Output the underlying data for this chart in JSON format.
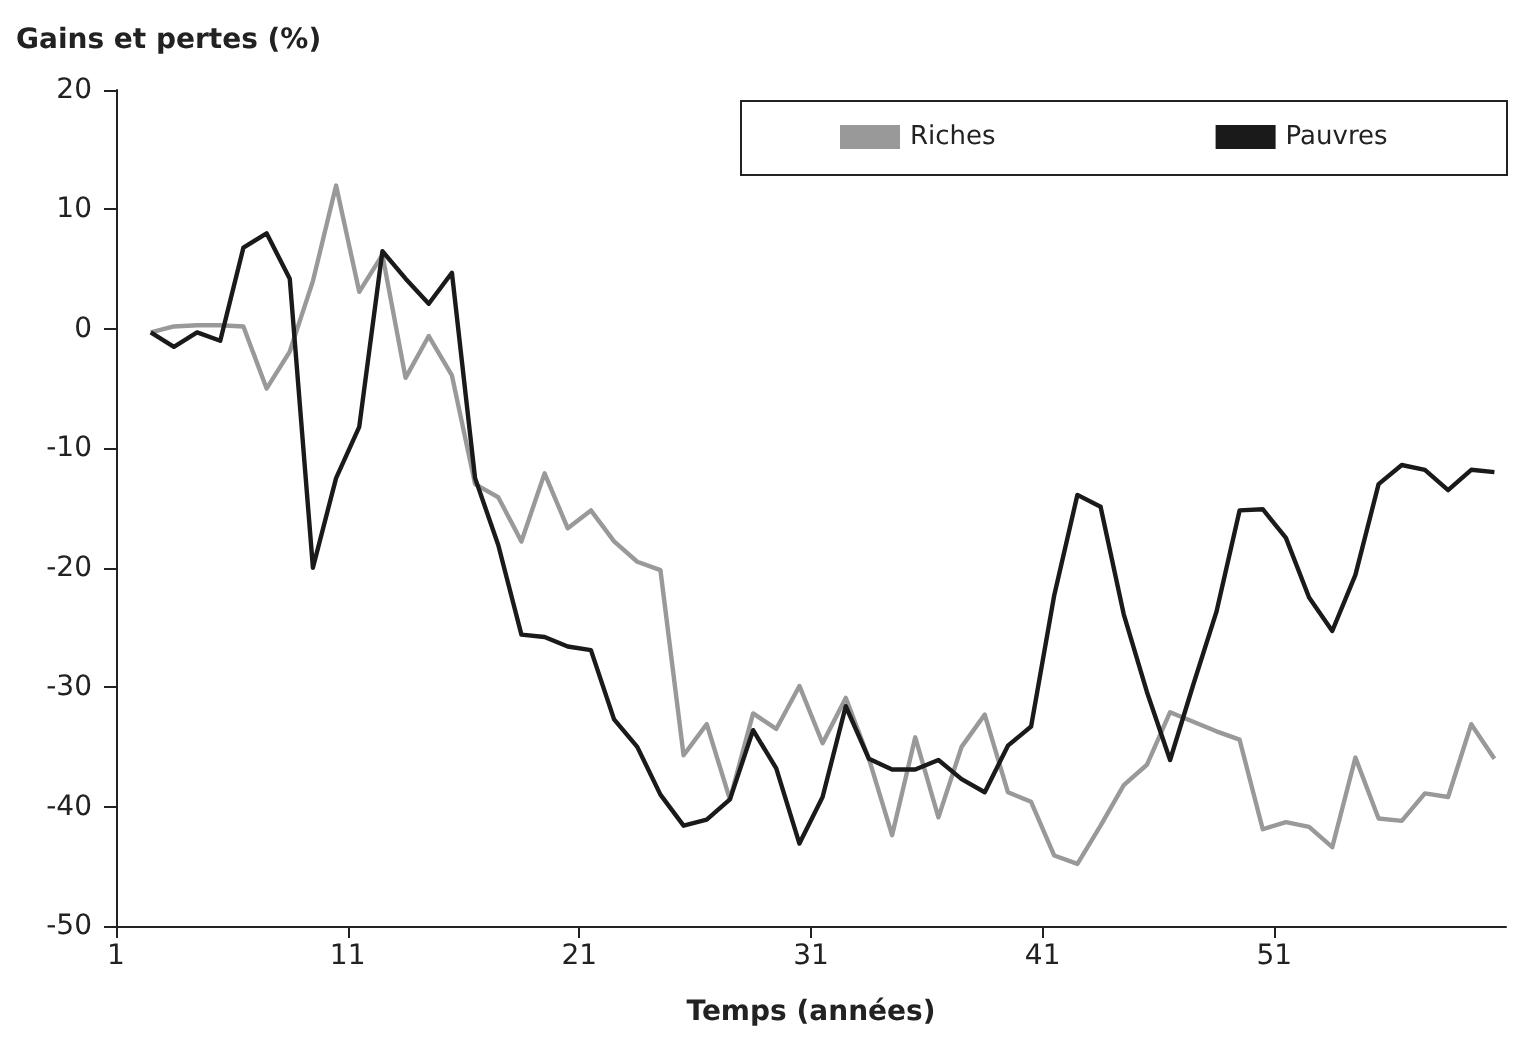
{
  "chart_data": {
    "type": "line",
    "ylabel": "Gains et pertes (%)",
    "xlabel": "Temps (années)",
    "x": [
      2.5,
      3.5,
      4.5,
      5.5,
      6.5,
      7.5,
      8.5,
      9.5,
      10.5,
      11.5,
      12.5,
      13.5,
      14.5,
      15.5,
      16.5,
      17.5,
      18.5,
      19.5,
      20.5,
      21.5,
      22.5,
      23.5,
      24.5,
      25.5,
      26.5,
      27.5,
      28.5,
      29.5,
      30.5,
      31.5,
      32.5,
      33.5,
      34.5,
      35.5,
      36.5,
      37.5,
      38.5,
      39.5,
      40.5,
      41.5,
      42.5,
      43.5,
      44.5,
      45.5,
      46.5,
      47.5,
      48.5,
      49.5,
      50.5,
      51.5,
      52.5,
      53.5,
      54.5,
      55.5,
      56.5,
      57.5,
      58.5,
      59.5,
      60.5
    ],
    "series": [
      {
        "name": "Riches",
        "color": "#999999",
        "values": [
          -0.3,
          0.2,
          0.3,
          0.3,
          0.2,
          -5,
          -1.9,
          4,
          12,
          3.1,
          6.2,
          -4.1,
          -0.6,
          -3.9,
          -13,
          -14.1,
          -17.8,
          -12.1,
          -16.7,
          -15.2,
          -17.8,
          -19.5,
          -20.2,
          -35.7,
          -33.1,
          -39.4,
          -32.2,
          -33.5,
          -29.9,
          -34.7,
          -30.9,
          -36,
          -42.4,
          -34.2,
          -40.9,
          -35,
          -32.3,
          -38.8,
          -39.6,
          -44.1,
          -44.8,
          -41.6,
          -38.2,
          -36.5,
          -32.1,
          -32.9,
          -33.7,
          -34.4,
          -41.9,
          -41.3,
          -41.7,
          -43.4,
          -35.9,
          -41,
          -41.2,
          -38.9,
          -39.2,
          -33.1,
          -36
        ]
      },
      {
        "name": "Pauvres",
        "color": "#1a1a1a",
        "values": [
          -0.3,
          -1.5,
          -0.3,
          -1,
          6.8,
          8,
          4.2,
          -20,
          -12.5,
          -8.2,
          6.5,
          4.2,
          2.1,
          4.7,
          -12.5,
          -18.1,
          -25.6,
          -25.8,
          -26.6,
          -26.9,
          -32.7,
          -35,
          -39,
          -41.6,
          -41.1,
          -39.4,
          -33.6,
          -36.8,
          -43.1,
          -39.2,
          -31.6,
          -36,
          -36.9,
          -36.9,
          -36.1,
          -37.7,
          -38.8,
          -34.9,
          -33.3,
          -22.3,
          -13.9,
          -14.9,
          -23.9,
          -30.4,
          -36.1,
          -29.8,
          -23.7,
          -15.2,
          -15.1,
          -17.5,
          -22.5,
          -25.3,
          -20.6,
          -13,
          -11.4,
          -11.8,
          -13.5,
          -11.8,
          -12
        ]
      }
    ],
    "xlim": [
      1,
      61
    ],
    "xticks": [
      1,
      11,
      21,
      31,
      41,
      51
    ],
    "ylim": [
      -50,
      20
    ],
    "yticks": [
      -50,
      -40,
      -30,
      -20,
      -10,
      0,
      10,
      20
    ],
    "grid": false,
    "legend": "top right",
    "marker": "none",
    "line_style": "solid"
  }
}
